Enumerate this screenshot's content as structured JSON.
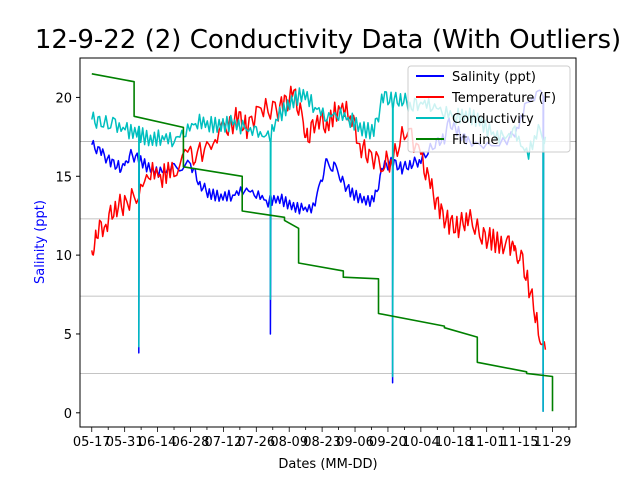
{
  "chart_data": {
    "type": "line",
    "title": "12-9-22 (2) Conductivity Data (With Outliers)",
    "xlabel": "Dates (MM-DD)",
    "ylabel": "Salinity (ppt)",
    "x_ticks": [
      "05-17",
      "05-31",
      "06-14",
      "06-28",
      "07-12",
      "07-26",
      "08-09",
      "08-23",
      "09-06",
      "09-20",
      "10-04",
      "10-18",
      "11-01",
      "11-15",
      "11-29"
    ],
    "y_ticks": [
      0,
      5,
      10,
      15,
      20
    ],
    "xlim": [
      -5,
      206
    ],
    "ylim": [
      -0.9,
      22.5
    ],
    "grid": "horizontal at secondary scale",
    "legend_position": "top-right",
    "colors": {
      "salinity": "#0000ff",
      "temperature": "#ff0000",
      "conductivity": "#00bfbf",
      "fit": "#008000"
    },
    "series": [
      {
        "name": "Salinity (ppt)",
        "color": "#0000ff",
        "x": [
          0,
          4,
          8,
          12,
          14,
          16,
          20,
          25,
          30,
          35,
          42,
          46,
          50,
          55,
          60,
          65,
          70,
          75,
          80,
          85,
          90,
          95,
          98,
          100,
          103,
          106,
          110,
          115,
          120,
          124,
          128,
          132,
          136,
          140,
          146,
          150,
          152,
          156,
          160,
          170,
          180,
          185,
          190,
          193
        ],
        "y": [
          17,
          16.5,
          15.9,
          15.6,
          15.4,
          16.4,
          16.1,
          15.4,
          15.2,
          15.6,
          15.8,
          14.5,
          13.9,
          13.7,
          13.8,
          14.2,
          13.9,
          13.4,
          13.6,
          13.1,
          12.9,
          13.0,
          15.0,
          15.9,
          15.6,
          14.8,
          14.0,
          13.5,
          13.4,
          15.6,
          15.9,
          15.5,
          15.8,
          16.0,
          17.1,
          17.4,
          18.4,
          17.8,
          17.2,
          16.8,
          17.6,
          19.6,
          20.2,
          19.8
        ]
      },
      {
        "name": "Temperature (F)",
        "color": "#ff0000",
        "x": [
          0,
          2,
          6,
          10,
          14,
          20,
          25,
          30,
          35,
          42,
          44,
          50,
          55,
          58,
          62,
          66,
          72,
          78,
          82,
          86,
          90,
          92,
          96,
          100,
          105,
          110,
          114,
          118,
          124,
          128,
          134,
          140,
          144,
          148,
          152,
          156,
          160,
          166,
          170,
          175,
          178,
          180,
          182,
          186,
          190,
          193
        ],
        "y": [
          10.3,
          11.5,
          12.0,
          13.1,
          13.2,
          14.0,
          15.4,
          15.0,
          15.6,
          16.2,
          16.5,
          16.7,
          17.7,
          18.0,
          18.8,
          18.1,
          19.4,
          19.0,
          19.6,
          20.2,
          18.5,
          17.5,
          18.8,
          18.2,
          19.4,
          19.1,
          17.0,
          16.3,
          15.9,
          16.0,
          18.2,
          16.2,
          14.4,
          12.8,
          12.0,
          11.8,
          12.4,
          11.2,
          11.0,
          10.6,
          10.5,
          9.9,
          10.3,
          8.0,
          5.5,
          4.0
        ]
      },
      {
        "name": "Conductivity",
        "color": "#00bfbf",
        "x": [
          0,
          4,
          10,
          15,
          20,
          25,
          30,
          35,
          40,
          45,
          50,
          55,
          60,
          65,
          70,
          75,
          80,
          85,
          90,
          95,
          100,
          105,
          110,
          115,
          120,
          124,
          128,
          132,
          136,
          140,
          145,
          150,
          155,
          160,
          165,
          170,
          175,
          180,
          185,
          190,
          193
        ],
        "y": [
          18.6,
          18.4,
          18.2,
          17.9,
          17.7,
          17.3,
          17.5,
          17.3,
          17.9,
          18.5,
          18.3,
          18.2,
          18.4,
          18.0,
          17.8,
          17.4,
          18.9,
          19.7,
          20.3,
          19.4,
          18.8,
          19.0,
          18.6,
          18.0,
          17.8,
          20.1,
          19.8,
          19.9,
          19.5,
          19.7,
          19.5,
          19.1,
          18.8,
          18.9,
          18.5,
          17.7,
          17.4,
          17.8,
          16.3,
          17.8,
          17.5
        ]
      },
      {
        "name": "Fit Line",
        "color": "#008000",
        "x": [
          0,
          18,
          18,
          39,
          39,
          64,
          64,
          82,
          82,
          88,
          88,
          107,
          107,
          122,
          122,
          150,
          150,
          164,
          164,
          185,
          185,
          196,
          196
        ],
        "y": [
          21.5,
          21.0,
          18.8,
          18.1,
          15.6,
          15.0,
          12.8,
          12.4,
          12.2,
          11.7,
          9.5,
          9.0,
          8.6,
          8.5,
          6.3,
          5.5,
          5.4,
          4.8,
          3.2,
          2.6,
          2.5,
          2.3,
          0.1
        ]
      }
    ],
    "outlier_spikes": [
      {
        "x": 20,
        "salinity_low": 3.8,
        "conductivity_low": 4.2
      },
      {
        "x": 76,
        "salinity_low": 5.0,
        "conductivity_low": 7.2
      },
      {
        "x": 128,
        "salinity_low": 1.9,
        "conductivity_low": 2.3
      },
      {
        "x": 192,
        "salinity_low": 0.1,
        "conductivity_low": 0.1
      }
    ]
  }
}
